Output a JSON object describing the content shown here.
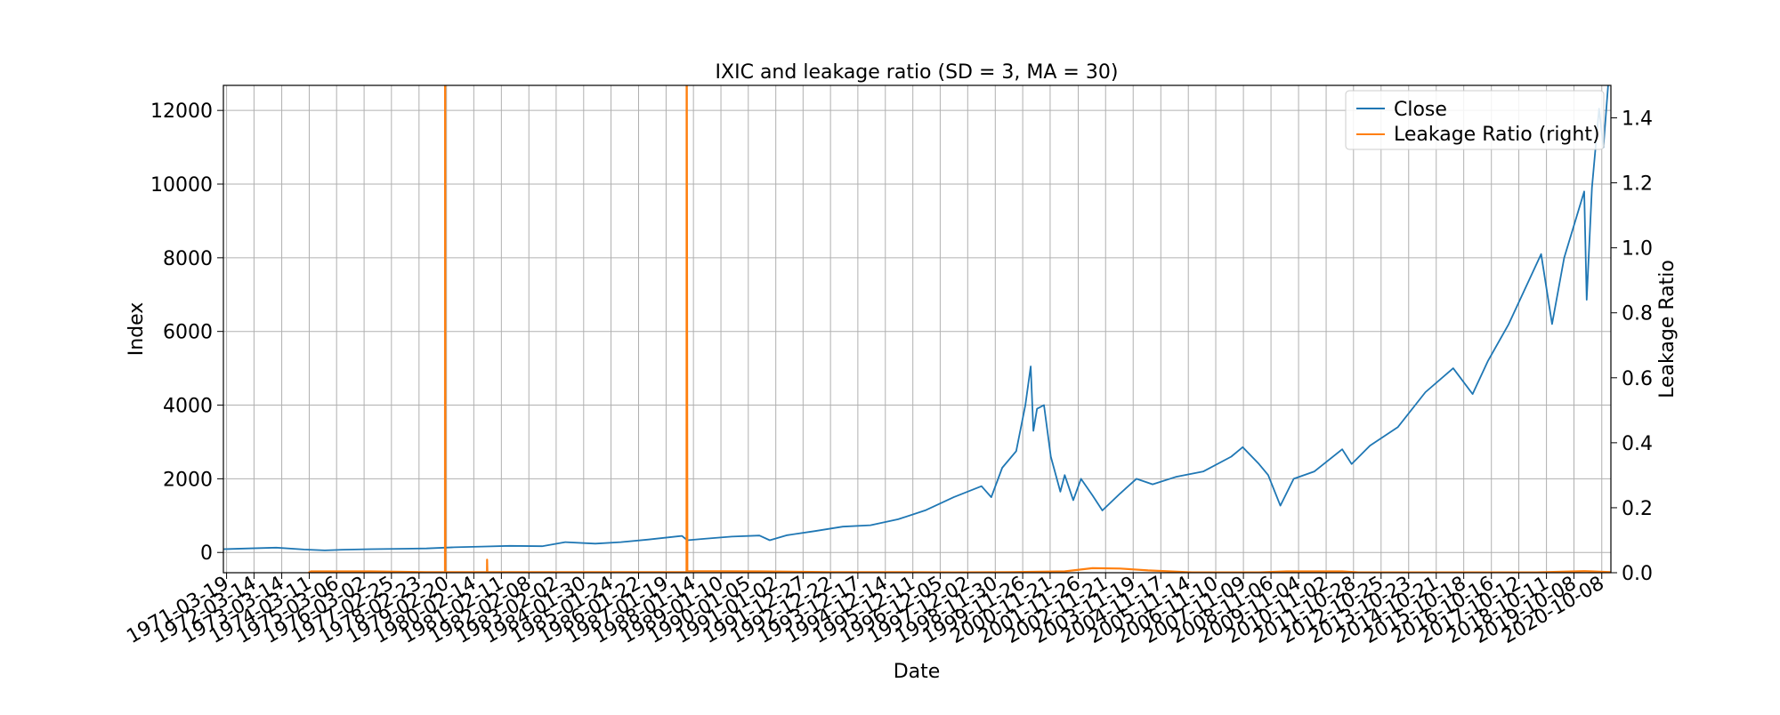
{
  "chart_data": {
    "type": "line",
    "title": "IXIC and leakage ratio (SD = 3, MA = 30)",
    "xlabel": "Date",
    "ylabel": "Index",
    "y2label": "Leakage Ratio",
    "xlim": [
      "1971-02-05",
      "2021-02-05"
    ],
    "ylim": [
      -550,
      12680
    ],
    "y2lim": [
      0,
      1.5
    ],
    "grid": true,
    "legend_position": "top-right",
    "x_tick_labels": [
      "1971-03-19",
      "1972-03-14",
      "1973-03-14",
      "1974-03-11",
      "1975-03-06",
      "1976-03-02",
      "1977-02-25",
      "1978-02-23",
      "1979-02-20",
      "1980-02-14",
      "1981-02-11",
      "1982-02-08",
      "1983-02-02",
      "1984-01-30",
      "1985-01-24",
      "1986-01-22",
      "1987-01-19",
      "1988-01-14",
      "1989-01-10",
      "1990-01-05",
      "1991-01-02",
      "1991-12-27",
      "1992-12-22",
      "1993-12-17",
      "1994-12-14",
      "1995-12-11",
      "1996-12-05",
      "1997-12-02",
      "1998-11-30",
      "1999-11-26",
      "2000-11-21",
      "2001-11-26",
      "2002-11-21",
      "2003-11-19",
      "2004-11-17",
      "2005-11-14",
      "2006-11-10",
      "2007-11-09",
      "2008-11-06",
      "2009-11-04",
      "2010-11-02",
      "2011-10-28",
      "2012-10-25",
      "2013-10-23",
      "2014-10-21",
      "2015-10-18",
      "2016-10-16",
      "2017-10-12",
      "2018-10-11",
      "2019-10-08",
      "2020-10-08"
    ],
    "y_ticks": [
      0,
      2000,
      4000,
      6000,
      8000,
      10000,
      12000
    ],
    "y2_ticks": [
      0.0,
      0.2,
      0.4,
      0.6,
      0.8,
      1.0,
      1.2,
      1.4
    ],
    "y2_tick_labels": [
      "0.0",
      "0.2",
      "0.4",
      "0.6",
      "0.8",
      "1.0",
      "1.2",
      "1.4"
    ],
    "series": [
      {
        "name": "Close",
        "axis": "left",
        "color": "#1f77b4",
        "x": [
          "1971-02-05",
          "1972-01-01",
          "1973-01-01",
          "1974-01-01",
          "1974-10-01",
          "1975-06-01",
          "1976-06-01",
          "1977-06-01",
          "1978-06-01",
          "1979-06-01",
          "1980-06-01",
          "1981-06-01",
          "1982-08-01",
          "1983-06-01",
          "1984-07-01",
          "1985-06-01",
          "1986-06-01",
          "1987-08-15",
          "1987-10-25",
          "1988-06-01",
          "1989-06-01",
          "1990-06-01",
          "1990-10-15",
          "1991-06-01",
          "1992-06-01",
          "1993-06-01",
          "1994-06-01",
          "1995-06-01",
          "1996-06-01",
          "1997-06-01",
          "1998-06-01",
          "1998-10-08",
          "1999-03-01",
          "1999-09-01",
          "1999-12-31",
          "2000-03-10",
          "2000-04-15",
          "2000-06-01",
          "2000-09-01",
          "2000-11-30",
          "2001-04-04",
          "2001-06-01",
          "2001-09-21",
          "2002-01-01",
          "2002-06-01",
          "2002-10-09",
          "2003-06-01",
          "2004-01-01",
          "2004-08-01",
          "2005-06-01",
          "2006-06-01",
          "2007-06-01",
          "2007-10-31",
          "2008-06-01",
          "2008-09-30",
          "2009-03-09",
          "2009-09-01",
          "2010-06-01",
          "2011-06-01",
          "2011-10-03",
          "2012-06-01",
          "2013-06-01",
          "2014-06-01",
          "2015-06-01",
          "2016-02-11",
          "2016-09-01",
          "2017-06-01",
          "2018-08-01",
          "2018-12-24",
          "2019-06-01",
          "2020-02-19",
          "2020-03-23",
          "2020-06-01",
          "2020-09-02",
          "2020-10-30",
          "2021-01-15",
          "2021-02-05"
        ],
        "values": [
          90,
          110,
          130,
          80,
          55,
          75,
          90,
          100,
          110,
          140,
          160,
          180,
          170,
          280,
          240,
          280,
          350,
          450,
          330,
          370,
          430,
          460,
          330,
          470,
          580,
          700,
          740,
          900,
          1150,
          1500,
          1800,
          1500,
          2300,
          2750,
          4000,
          5050,
          3300,
          3900,
          4000,
          2600,
          1650,
          2100,
          1420,
          2000,
          1550,
          1140,
          1600,
          2000,
          1850,
          2050,
          2200,
          2600,
          2860,
          2400,
          2100,
          1270,
          2000,
          2200,
          2800,
          2400,
          2900,
          3400,
          4350,
          5000,
          4300,
          5200,
          6200,
          8100,
          6200,
          8000,
          9800,
          6860,
          9900,
          12050,
          11000,
          13100,
          13400
        ]
      },
      {
        "name": "Leakage Ratio (right)",
        "axis": "right",
        "color": "#ff7f0e",
        "x": [
          "1974-03-01",
          "1974-04-01",
          "1976-06-01",
          "1978-06-01",
          "1979-01-31",
          "1979-02-01",
          "1979-02-02",
          "1979-02-05",
          "1980-08-06",
          "1980-08-07",
          "1980-08-10",
          "1987-10-15",
          "1987-10-16",
          "1987-10-19",
          "1987-10-26",
          "1990-06-01",
          "1993-01-01",
          "1995-01-01",
          "1997-06-01",
          "1999-06-01",
          "2001-06-01",
          "2002-06-01",
          "2003-06-01",
          "2004-06-01",
          "2006-01-01",
          "2008-06-01",
          "2009-06-01",
          "2011-06-01",
          "2012-01-01",
          "2014-01-01",
          "2016-01-01",
          "2018-06-01",
          "2020-03-01",
          "2020-06-01",
          "2021-02-05"
        ],
        "values": [
          0,
          0.004,
          0.004,
          0.002,
          0.002,
          1.5,
          1.5,
          0.002,
          0.002,
          0.04,
          0.002,
          0.002,
          1.5,
          1.5,
          0.005,
          0.004,
          0.002,
          0.002,
          0.001,
          0.002,
          0.004,
          0.014,
          0.013,
          0.007,
          0.001,
          0.001,
          0.004,
          0.004,
          0.001,
          0.001,
          0.001,
          0.001,
          0.005,
          0.004,
          0.002
        ]
      }
    ]
  }
}
